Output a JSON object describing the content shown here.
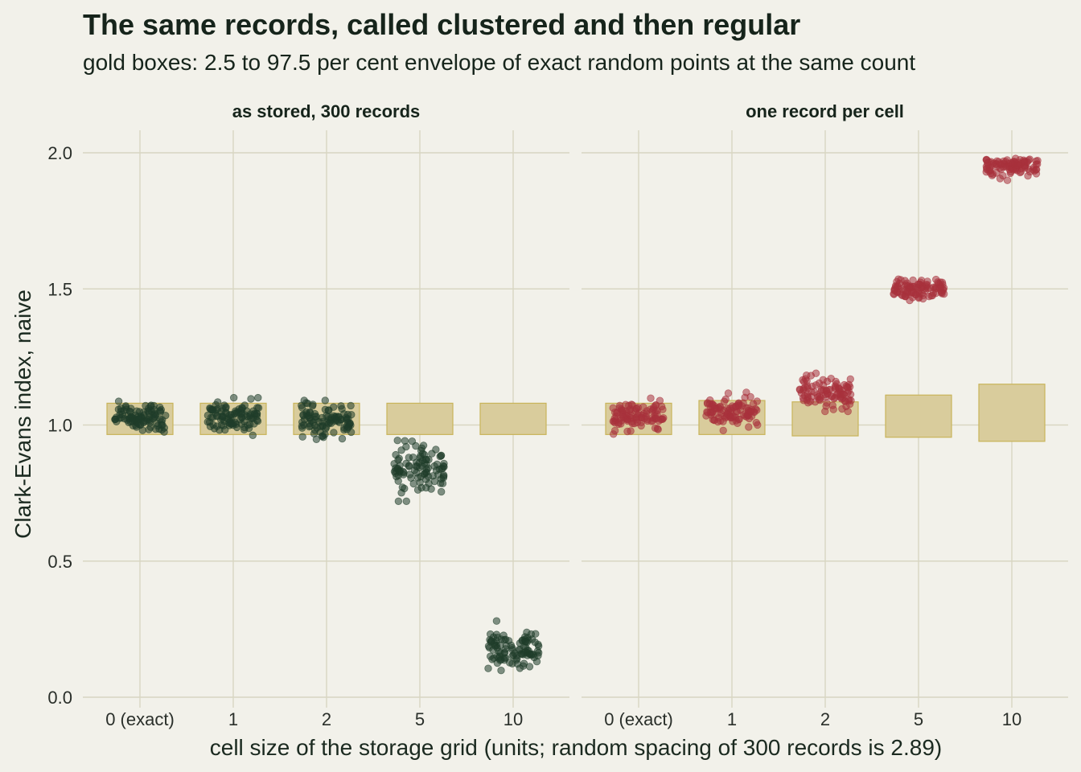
{
  "title": "The same records, called clustered and then regular",
  "subtitle": "gold boxes: 2.5 to 97.5 per cent envelope of exact random points at the same count",
  "chart_data": {
    "type": "scatter",
    "xlabel": "cell size of the storage grid (units; random spacing of 300 records is 2.89)",
    "ylabel": "Clark-Evans index, naive",
    "categories": [
      "0 (exact)",
      "1",
      "2",
      "5",
      "10"
    ],
    "ylim": [
      0,
      2.1
    ],
    "yticks": [
      "0.0",
      "0.5",
      "1.0",
      "1.5",
      "2.0"
    ],
    "grid": true,
    "legend": "none",
    "colors": {
      "envelope_fill": "#d9cc9c",
      "envelope_edge": "#c9b45a",
      "panel1_points": "#1f3d2a",
      "panel2_points": "#a8323c",
      "grid": "#d8d6c2",
      "background": "#f2f1ea"
    },
    "panels": [
      {
        "label": "as stored, 300 records",
        "envelopes": [
          {
            "category": "0 (exact)",
            "low": 0.965,
            "high": 1.08
          },
          {
            "category": "1",
            "low": 0.965,
            "high": 1.08
          },
          {
            "category": "2",
            "low": 0.965,
            "high": 1.08
          },
          {
            "category": "5",
            "low": 0.965,
            "high": 1.08
          },
          {
            "category": "10",
            "low": 0.965,
            "high": 1.08
          }
        ],
        "points": [
          {
            "category": "0 (exact)",
            "center": 1.03,
            "spread": 0.028,
            "min": 0.96,
            "max": 1.1
          },
          {
            "category": "1",
            "center": 1.03,
            "spread": 0.028,
            "min": 0.96,
            "max": 1.1
          },
          {
            "category": "2",
            "center": 1.02,
            "spread": 0.03,
            "min": 0.93,
            "max": 1.09
          },
          {
            "category": "5",
            "center": 0.85,
            "spread": 0.045,
            "min": 0.72,
            "max": 0.99
          },
          {
            "category": "10",
            "center": 0.17,
            "spread": 0.035,
            "min": 0.09,
            "max": 0.28
          }
        ]
      },
      {
        "label": "one record per cell",
        "envelopes": [
          {
            "category": "0 (exact)",
            "low": 0.965,
            "high": 1.08
          },
          {
            "category": "1",
            "low": 0.965,
            "high": 1.09
          },
          {
            "category": "2",
            "low": 0.96,
            "high": 1.085
          },
          {
            "category": "5",
            "low": 0.955,
            "high": 1.11
          },
          {
            "category": "10",
            "low": 0.94,
            "high": 1.15
          }
        ],
        "points": [
          {
            "category": "0 (exact)",
            "center": 1.03,
            "spread": 0.028,
            "min": 0.96,
            "max": 1.1
          },
          {
            "category": "1",
            "center": 1.05,
            "spread": 0.028,
            "min": 0.98,
            "max": 1.12
          },
          {
            "category": "2",
            "center": 1.11,
            "spread": 0.03,
            "min": 1.05,
            "max": 1.19
          },
          {
            "category": "5",
            "center": 1.5,
            "spread": 0.02,
            "min": 1.44,
            "max": 1.54
          },
          {
            "category": "10",
            "center": 1.95,
            "spread": 0.018,
            "min": 1.89,
            "max": 1.99
          }
        ]
      }
    ],
    "points_per_category": 100
  }
}
